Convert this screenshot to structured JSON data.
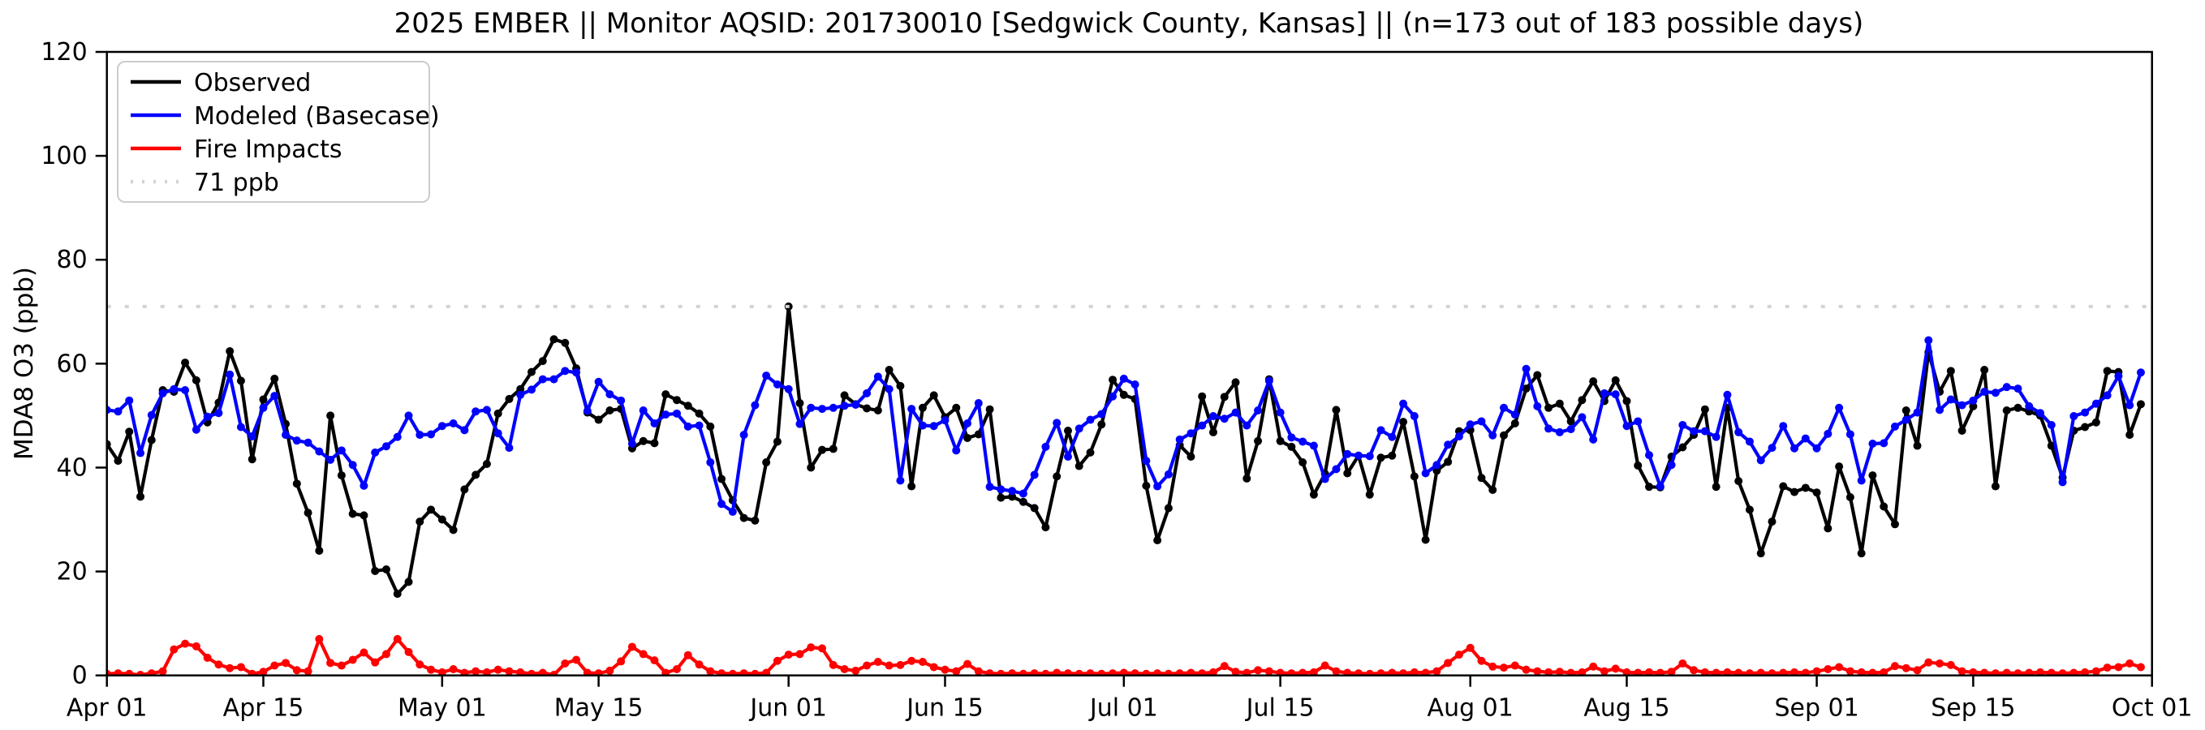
{
  "chart_data": {
    "type": "line",
    "title": "2025 EMBER || Monitor AQSID: 201730010 [Sedgwick County, Kansas] || (n=173 out of 183 possible days)",
    "xlabel": "",
    "ylabel": "MDA8 O3 (ppb)",
    "ylim": [
      0,
      120
    ],
    "yticks": [
      0,
      20,
      40,
      60,
      80,
      100,
      120
    ],
    "x_range_days": 183,
    "x_ticks": [
      {
        "label": "Apr 01",
        "day": 0
      },
      {
        "label": "Apr 15",
        "day": 14
      },
      {
        "label": "May 01",
        "day": 30
      },
      {
        "label": "May 15",
        "day": 44
      },
      {
        "label": "Jun 01",
        "day": 61
      },
      {
        "label": "Jun 15",
        "day": 75
      },
      {
        "label": "Jul 01",
        "day": 91
      },
      {
        "label": "Jul 15",
        "day": 105
      },
      {
        "label": "Aug 01",
        "day": 122
      },
      {
        "label": "Aug 15",
        "day": 136
      },
      {
        "label": "Sep 01",
        "day": 153
      },
      {
        "label": "Sep 15",
        "day": 167
      },
      {
        "label": "Oct 01",
        "day": 183
      }
    ],
    "threshold": {
      "label": "71 ppb",
      "value": 71,
      "color": "#d3d3d3",
      "style": "dotted"
    },
    "legend_position": "upper left",
    "grid": false,
    "series": [
      {
        "name": "Observed",
        "color": "#000000",
        "values": [
          44.5,
          41.3,
          46.9,
          34.4,
          45.3,
          54.9,
          54.6,
          60.2,
          56.8,
          48.7,
          52.5,
          62.4,
          56.7,
          41.6,
          53.1,
          57.1,
          48.4,
          36.9,
          31.3,
          24,
          50,
          38.5,
          31.1,
          30.8,
          20.1,
          20.4,
          15.7,
          18,
          29.6,
          31.9,
          30,
          28,
          35.8,
          38.6,
          40.7,
          50.4,
          53.2,
          55.1,
          58.4,
          60.5,
          64.7,
          64,
          59.1,
          50.6,
          49.2,
          51,
          51.3,
          43.7,
          45.1,
          44.7,
          54.1,
          53,
          51.9,
          50.4,
          47.9,
          37.8,
          33.7,
          30.3,
          29.8,
          41,
          45,
          71,
          52.4,
          40,
          43.4,
          43.6,
          53.9,
          52.2,
          51.4,
          51,
          58.8,
          55.7,
          36.4,
          51.5,
          53.9,
          49.7,
          51.5,
          45.7,
          46.4,
          51.2,
          34.2,
          34.4,
          33.4,
          32.2,
          28.5,
          38.3,
          47.1,
          40.3,
          42.9,
          48.3,
          56.9,
          54,
          53.2,
          36.5,
          26,
          32.2,
          44.3,
          42.1,
          53.7,
          46.8,
          53.6,
          56.4,
          37.9,
          45.1,
          57,
          45.1,
          44,
          41,
          34.8,
          38.8,
          51.1,
          38.9,
          42.3,
          34.8,
          41.9,
          42.3,
          48.8,
          38.3,
          26.1,
          39.4,
          41.1,
          47,
          47.2,
          38,
          35.7,
          46.2,
          48.5,
          55.2,
          57.8,
          51.5,
          52.3,
          48.9,
          53,
          56.6,
          52.8,
          56.8,
          52.8,
          40.4,
          36.3,
          36.2,
          42.1,
          43.9,
          46.3,
          51.2,
          36.3,
          51.5,
          37.4,
          31.9,
          23.5,
          29.6,
          36.4,
          35.3,
          36.1,
          35.2,
          28.3,
          40.2,
          34.3,
          23.5,
          38.5,
          32.5,
          29.1,
          51,
          44.2,
          62.2,
          54.6,
          58.6,
          47.1,
          51.8,
          58.8,
          36.4,
          51,
          51.5,
          50.8,
          50,
          44.2,
          38.1,
          47.1,
          47.8,
          48.7,
          58.6,
          58.4,
          46.3,
          52.2
        ]
      },
      {
        "name": "Modeled (Basecase)",
        "color": "#0000ff",
        "values": [
          51.1,
          50.8,
          52.9,
          42.8,
          50.1,
          54.3,
          55.1,
          54.9,
          47.3,
          49.8,
          50.5,
          57.9,
          47.8,
          46,
          51.5,
          53.8,
          46.3,
          45.2,
          44.8,
          43.1,
          41.5,
          43.3,
          40.5,
          36.5,
          42.9,
          44.1,
          45.9,
          50,
          46.3,
          46.4,
          48,
          48.5,
          47.2,
          50.8,
          51.1,
          46.6,
          43.8,
          54,
          55,
          57,
          57,
          58.6,
          58.3,
          50.9,
          56.5,
          54.1,
          52.9,
          44.6,
          51,
          48.5,
          50.2,
          50.4,
          47.9,
          48.1,
          41,
          33,
          31.5,
          46.3,
          52,
          57.7,
          56,
          55.1,
          48.4,
          51.5,
          51.3,
          51.5,
          51.9,
          52.1,
          54.3,
          57.5,
          55.1,
          37.5,
          51.3,
          48.1,
          48,
          49.1,
          43.3,
          48.5,
          52.4,
          36.3,
          35.8,
          35.5,
          35,
          38.6,
          44,
          48.6,
          42.1,
          47.5,
          49.2,
          50.3,
          53.7,
          57.1,
          56,
          41.3,
          36.4,
          38.7,
          45.4,
          46.6,
          48.1,
          49.9,
          49.4,
          50.6,
          48.1,
          51,
          56.7,
          50.6,
          45.8,
          45,
          44.2,
          37.8,
          39.7,
          42.6,
          42.3,
          42.2,
          47.2,
          45.9,
          52.3,
          49.9,
          38.9,
          40.5,
          44.4,
          46,
          48.3,
          48.9,
          46.2,
          51.5,
          50.2,
          59,
          51.8,
          47.5,
          46.8,
          47.4,
          49.7,
          45.4,
          54.3,
          54.1,
          48,
          48.9,
          42.4,
          36.4,
          40.5,
          48.2,
          47,
          47,
          45.9,
          54,
          46.8,
          45,
          41.4,
          43.8,
          48,
          43.7,
          45.6,
          43.7,
          46.5,
          51.5,
          46.4,
          37.5,
          44.6,
          44.7,
          47.9,
          49.2,
          50.6,
          64.5,
          51.1,
          53.1,
          52,
          52.9,
          54.6,
          54.4,
          55.5,
          55.2,
          51.8,
          50.5,
          48.2,
          37.2,
          49.9,
          50.6,
          52.3,
          53.9,
          57.6,
          52,
          58.3
        ]
      },
      {
        "name": "Fire Impacts",
        "color": "#ff0000",
        "values": [
          0.3,
          0.4,
          0.3,
          0.1,
          0.4,
          0.8,
          5,
          6.1,
          5.6,
          3.4,
          2.1,
          1.4,
          1.6,
          0.3,
          0.7,
          1.9,
          2.4,
          1,
          0.8,
          7,
          2.4,
          1.9,
          3,
          4.4,
          2.5,
          4.1,
          7,
          4.5,
          2.1,
          1.1,
          0.6,
          1.2,
          0.5,
          0.8,
          0.6,
          1.1,
          0.8,
          0.6,
          0.3,
          0.5,
          0.1,
          2.3,
          3,
          0.5,
          0.4,
          0.9,
          2.7,
          5.5,
          4.1,
          2.9,
          0.5,
          1.2,
          3.9,
          2.1,
          0.8,
          0.4,
          0.3,
          0.4,
          0.3,
          0.5,
          2.8,
          4,
          4.1,
          5.4,
          5.2,
          2,
          1.2,
          0.9,
          1.9,
          2.6,
          1.9,
          2,
          2.8,
          2.6,
          1.6,
          1.1,
          0.8,
          2.2,
          0.8,
          0.4,
          0.3,
          0.4,
          0.3,
          0.4,
          0.3,
          0.5,
          0.4,
          0.3,
          0.4,
          0.3,
          0.4,
          0.5,
          0.4,
          0.3,
          0.4,
          0.3,
          0.4,
          0.5,
          0.4,
          0.6,
          1.8,
          0.7,
          0.5,
          1,
          0.8,
          0.5,
          0.4,
          0.5,
          0.6,
          1.9,
          0.8,
          0.5,
          0.4,
          0.3,
          0.4,
          0.5,
          0.4,
          0.6,
          0.5,
          0.8,
          2.4,
          4,
          5.3,
          2.8,
          1.7,
          1.5,
          1.9,
          1.1,
          0.8,
          0.6,
          0.7,
          0.5,
          0.6,
          1.7,
          0.8,
          1.3,
          0.6,
          0.5,
          0.6,
          0.5,
          0.7,
          2.3,
          1,
          0.6,
          0.5,
          0.6,
          0.5,
          0.4,
          0.5,
          0.4,
          0.5,
          0.6,
          0.5,
          0.8,
          1.2,
          1.6,
          0.8,
          0.6,
          0.5,
          0.6,
          1.8,
          1.4,
          1,
          2.5,
          2.3,
          2,
          0.8,
          0.6,
          0.5,
          0.4,
          0.5,
          0.4,
          0.5,
          0.6,
          0.5,
          0.4,
          0.5,
          0.6,
          0.8,
          1.5,
          1.6,
          2.3,
          1.6
        ]
      }
    ]
  }
}
